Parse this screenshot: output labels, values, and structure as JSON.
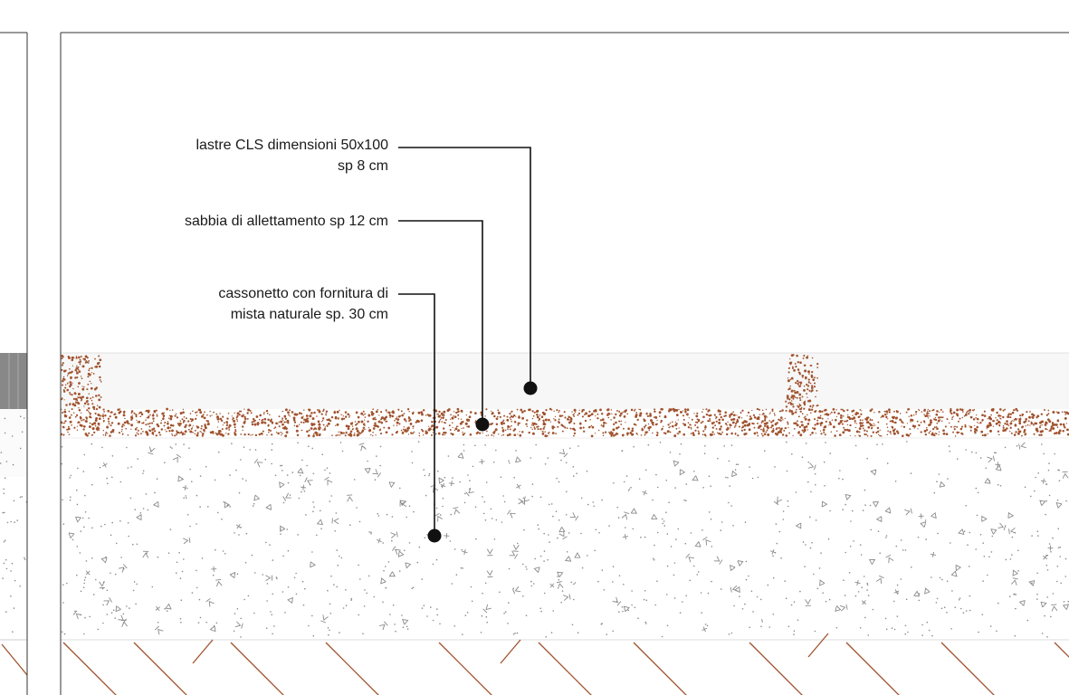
{
  "section_title": "",
  "colors": {
    "frame": "#333333",
    "slab": "#f7f7f7",
    "sand": "#a0522d",
    "aggregate": "#8a8a8a",
    "hatch": "#a0522d",
    "leader": "#111111",
    "left_panel_slab": "#888888"
  },
  "callouts": [
    {
      "lines": [
        "lastre CLS dimensioni 50x100",
        "sp 8 cm"
      ]
    },
    {
      "lines": [
        "sabbia di allettamento sp 12 cm"
      ]
    },
    {
      "lines": [
        "cassonetto con fornitura di",
        "mista naturale sp. 30 cm"
      ]
    }
  ]
}
